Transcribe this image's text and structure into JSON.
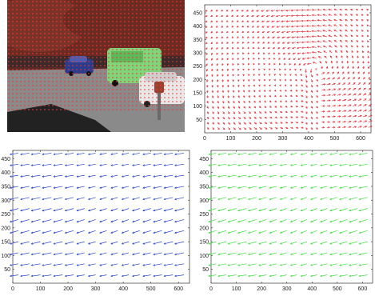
{
  "photo": {
    "description_icon": "street-scene-photo",
    "colors": {
      "sky": "#5c2a24",
      "trees": "#6b2a22",
      "road": "#8f8f8f",
      "blue_car": "#2a3d8c",
      "green_van": "#7fd67a",
      "white_car": "#e8e8e8",
      "point": "#ff3030"
    }
  },
  "chart_data": [
    {
      "type": "quiver",
      "series": [
        {
          "color": "#e8323c"
        }
      ],
      "xlim": [
        0,
        640
      ],
      "ylim": [
        0,
        480
      ],
      "xticks": [
        0,
        100,
        200,
        300,
        400,
        500,
        600
      ],
      "yticks": [
        50,
        100,
        150,
        200,
        250,
        300,
        350,
        400,
        450
      ],
      "xtick_labels": [
        "0",
        "100",
        "200",
        "300",
        "400",
        "500",
        "600"
      ],
      "ytick_labels": [
        "50",
        "100",
        "150",
        "200",
        "250",
        "300",
        "350",
        "400",
        "450"
      ],
      "grid": false,
      "arrow_spacing": [
        20,
        20
      ],
      "arrow_note": "rotating flow field, short dark red arrows"
    },
    {
      "type": "quiver",
      "series": [
        {
          "color": "#1f3fd1"
        }
      ],
      "xlim": [
        0,
        640
      ],
      "ylim": [
        0,
        480
      ],
      "xticks": [
        0,
        100,
        200,
        300,
        400,
        500,
        600
      ],
      "yticks": [
        50,
        100,
        150,
        200,
        250,
        300,
        350,
        400,
        450
      ],
      "xtick_labels": [
        "0",
        "100",
        "200",
        "300",
        "400",
        "500",
        "600"
      ],
      "ytick_labels": [
        "50",
        "100",
        "150",
        "200",
        "250",
        "300",
        "350",
        "400",
        "450"
      ],
      "grid": false,
      "arrow_spacing": [
        40,
        40
      ]
    },
    {
      "type": "quiver",
      "series": [
        {
          "color": "#39e039"
        }
      ],
      "xlim": [
        0,
        640
      ],
      "ylim": [
        0,
        480
      ],
      "xticks": [
        0,
        100,
        200,
        300,
        400,
        500,
        600
      ],
      "yticks": [
        50,
        100,
        150,
        200,
        250,
        300,
        350,
        400,
        450
      ],
      "xtick_labels": [
        "0",
        "100",
        "200",
        "300",
        "400",
        "500",
        "600"
      ],
      "ytick_labels": [
        "50",
        "100",
        "150",
        "200",
        "250",
        "300",
        "350",
        "400",
        "450"
      ],
      "grid": false,
      "arrow_spacing": [
        40,
        40
      ]
    }
  ]
}
